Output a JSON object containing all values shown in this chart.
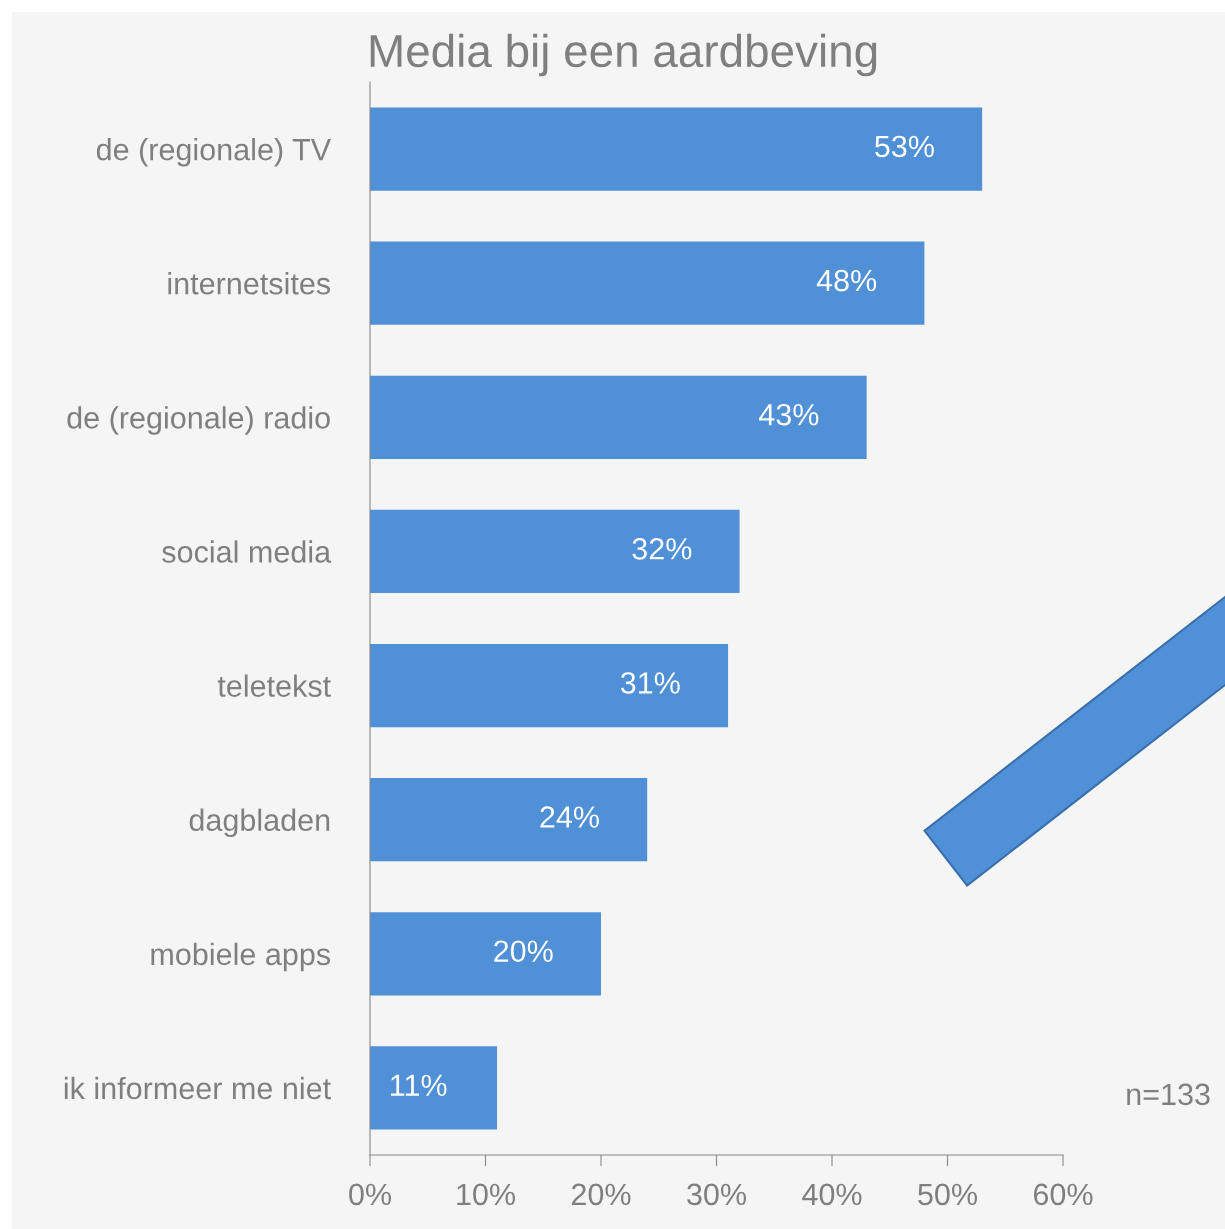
{
  "chart_data": {
    "type": "bar",
    "orientation": "horizontal",
    "title": "Media bij een aardbeving",
    "categories": [
      "de (regionale) TV",
      "internetsites",
      "de (regionale) radio",
      "social media",
      "teletekst",
      "dagbladen",
      "mobiele apps",
      "ik informeer me niet"
    ],
    "values": [
      53,
      48,
      43,
      32,
      31,
      24,
      20,
      11
    ],
    "value_labels": [
      "53%",
      "48%",
      "43%",
      "32%",
      "31%",
      "24%",
      "20%",
      "11%"
    ],
    "color": "#4f90d6",
    "xlim": [
      0,
      60
    ],
    "xticks": [
      {
        "value": 0,
        "label": "0%"
      },
      {
        "value": 10,
        "label": "10%"
      },
      {
        "value": 20,
        "label": "20%"
      },
      {
        "value": 30,
        "label": "30%"
      },
      {
        "value": 40,
        "label": "40%"
      },
      {
        "value": 50,
        "label": "50%"
      },
      {
        "value": 60,
        "label": "60%"
      }
    ],
    "annotations": [
      "n=133"
    ],
    "grid": false,
    "legend": false
  }
}
